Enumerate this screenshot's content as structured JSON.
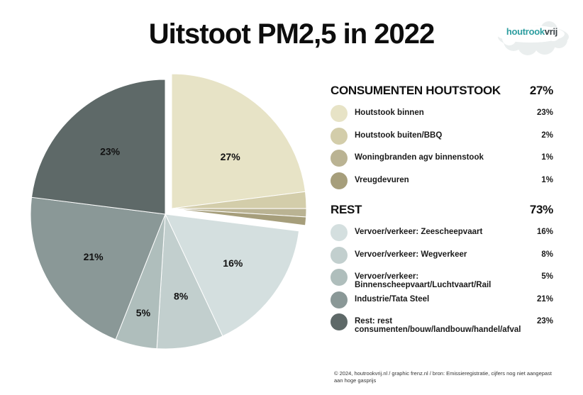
{
  "title": "Uitstoot PM2,5 in 2022",
  "logo": {
    "part1": "houtrook",
    "part2": "vrij"
  },
  "chart_data": {
    "type": "pie",
    "title": "Uitstoot PM2,5 in 2022",
    "unit": "%",
    "groups": [
      {
        "name": "CONSUMENTEN HOUTSTOOK",
        "total_label": "27%",
        "total": 27,
        "exploded": true,
        "items": [
          {
            "label": "Houtstook binnen",
            "value": 23,
            "value_label": "23%",
            "color": "#e7e3c6"
          },
          {
            "label": "Houtstook buiten/BBQ",
            "value": 2,
            "value_label": "2%",
            "color": "#d3cdaa"
          },
          {
            "label": "Woningbranden agv binnenstook",
            "value": 1,
            "value_label": "1%",
            "color": "#bab393"
          },
          {
            "label": "Vreugdevuren",
            "value": 1,
            "value_label": "1%",
            "color": "#a69e7b"
          }
        ]
      },
      {
        "name": "REST",
        "total_label": "73%",
        "total": 73,
        "exploded": false,
        "items": [
          {
            "label": "Vervoer/verkeer: Zeescheepvaart",
            "value": 16,
            "value_label": "16%",
            "color": "#d4dfdf"
          },
          {
            "label": "Vervoer/verkeer: Wegverkeer",
            "value": 8,
            "value_label": "8%",
            "color": "#c2cfce"
          },
          {
            "label": "Vervoer/verkeer: Binnenscheepvaart/Luchtvaart/Rail",
            "value": 5,
            "value_label": "5%",
            "color": "#afbebc"
          },
          {
            "label": "Industrie/Tata Steel",
            "value": 21,
            "value_label": "21%",
            "color": "#8a9897"
          },
          {
            "label": "Rest: rest consumenten/bouw/landbouw/handel/afval",
            "value": 23,
            "value_label": "23%",
            "color": "#5e6968"
          }
        ]
      }
    ],
    "slice_labels": [
      {
        "text": "27%",
        "group": 0,
        "of": "group"
      },
      {
        "text": "16%",
        "group": 1,
        "item": 0
      },
      {
        "text": "8%",
        "group": 1,
        "item": 1
      },
      {
        "text": "5%",
        "group": 1,
        "item": 2
      },
      {
        "text": "21%",
        "group": 1,
        "item": 3
      },
      {
        "text": "23%",
        "group": 1,
        "item": 4
      }
    ]
  },
  "footer": {
    "line1": "© 2024, houtrookvrij.nl / graphic frenz.nl / bron: Emissieregistratie, cijfers nog niet aangepast",
    "line2": "aan hoge gasprijs"
  }
}
